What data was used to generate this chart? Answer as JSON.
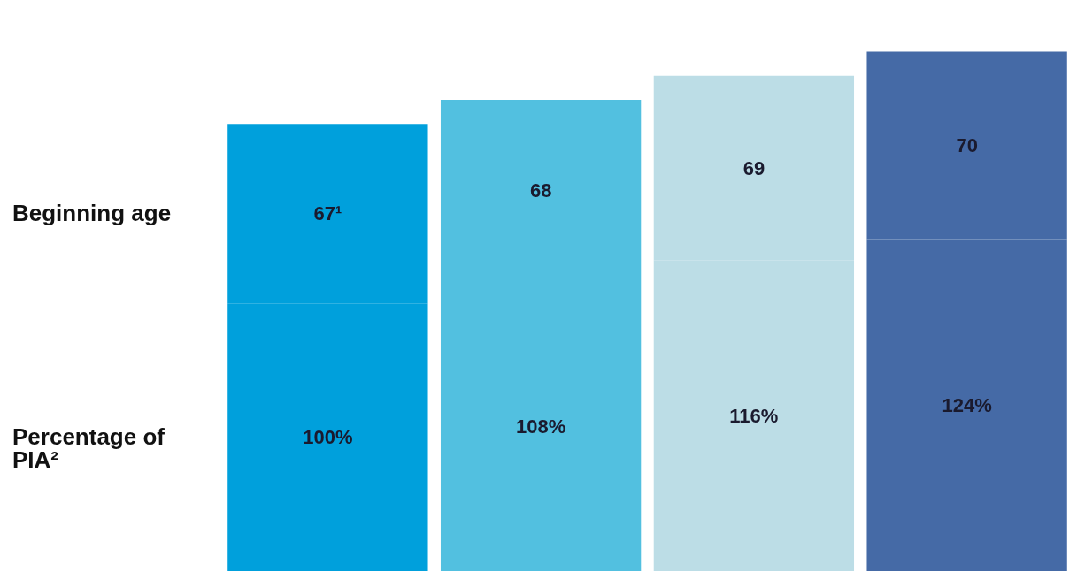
{
  "chart_data": {
    "type": "bar",
    "stacked": true,
    "categories": [
      null,
      null,
      null,
      null
    ],
    "series": [
      {
        "name": "Percentage of PIA²",
        "colors": [
          "#00a0dc",
          "#52c0e0",
          "#bcdde6",
          "#456aa6"
        ],
        "values": [
          100,
          108,
          116,
          124
        ],
        "value_labels": [
          "100%",
          "108%",
          "116%",
          "124%"
        ]
      },
      {
        "name": "Beginning age",
        "colors": [
          "#00a0dc",
          "#52c0e0",
          "#bcdde6",
          "#456aa6"
        ],
        "values": [
          67,
          68,
          69,
          70
        ],
        "value_labels": [
          "67¹",
          "68",
          "69",
          "70"
        ]
      }
    ]
  }
}
